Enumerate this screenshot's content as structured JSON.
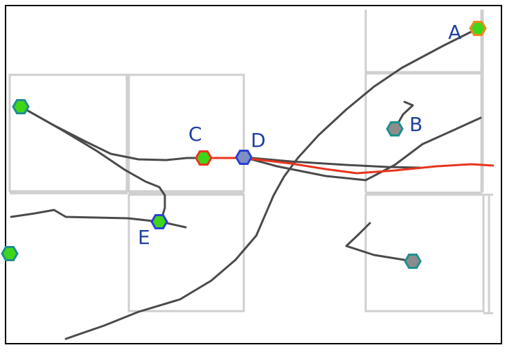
{
  "colors": {
    "background": "#ffffff",
    "frame": "#000000",
    "grid": "#cfcfcf",
    "track": "#4a4a4a",
    "highlight": "#e8341c",
    "label": "#1f3f9f",
    "green_fill": "#3fd61a",
    "gray_fill": "#8c8c8c",
    "teal_stroke": "#1f8f8f",
    "blue_stroke": "#2b3fd6",
    "red_stroke": "#e8341c",
    "orange_stroke": "#f08a1a",
    "blue_fill": "#7d8fc4"
  },
  "nodes": [
    {
      "id": "A",
      "label": "A",
      "fill": "green_fill",
      "stroke": "orange_stroke"
    },
    {
      "id": "B",
      "label": "B",
      "fill": "gray_fill",
      "stroke": "teal_stroke"
    },
    {
      "id": "C",
      "label": "C",
      "fill": "green_fill",
      "stroke": "red_stroke"
    },
    {
      "id": "D",
      "label": "D",
      "fill": "blue_fill",
      "stroke": "blue_stroke"
    },
    {
      "id": "E",
      "label": "E",
      "fill": "green_fill",
      "stroke": "blue_stroke"
    },
    {
      "id": "F",
      "label": "",
      "fill": "green_fill",
      "stroke": "teal_stroke"
    },
    {
      "id": "G",
      "label": "",
      "fill": "gray_fill",
      "stroke": "teal_stroke"
    },
    {
      "id": "H",
      "label": "",
      "fill": "green_fill",
      "stroke": "teal_stroke"
    }
  ]
}
